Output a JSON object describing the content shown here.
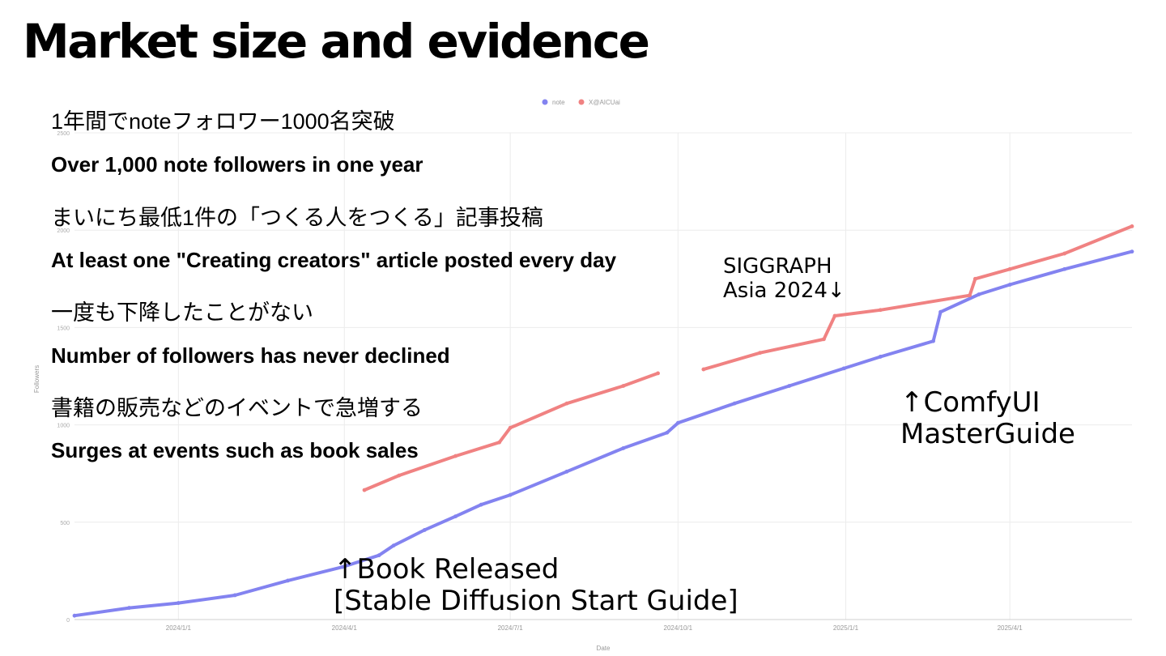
{
  "slide": {
    "title": "Market size and evidence",
    "bullets": [
      "1年間でnoteフォロワー1000名突破",
      "Over 1,000 note followers in one year",
      "まいにち最低1件の「つくる人をつくる」記事投稿",
      "At least one \"Creating creators\" article posted every day",
      "一度も下降したことがない",
      "Number of followers has never declined",
      "書籍の販売などのイベントで急増する",
      "Surges at events such as book sales"
    ],
    "annotations": {
      "siggraph_line1": "SIGGRAPH",
      "siggraph_line2": "Asia 2024↓",
      "comfy_line1": "↑ComfyUI",
      "comfy_line2": "MasterGuide",
      "book_line1": "↑Book Released",
      "book_line2": "[Stable Diffusion Start Guide]"
    }
  },
  "chart_data": {
    "type": "line",
    "xlabel": "Date",
    "ylabel": "Followers",
    "x_ticks": [
      "2024/1/1",
      "2024/4/1",
      "2024/7/1",
      "2024/10/1",
      "2025/1/1",
      "2025/4/1"
    ],
    "y_ticks": [
      0,
      500,
      1000,
      1500,
      2000,
      2500
    ],
    "ylim": [
      0,
      2500
    ],
    "xlim": [
      "2023-11-05",
      "2025-06-07"
    ],
    "grid": true,
    "legend_position": "top",
    "series": [
      {
        "name": "note",
        "color": "#8383f0",
        "points": [
          [
            "2023-11-05",
            20
          ],
          [
            "2023-12-05",
            60
          ],
          [
            "2024-01-01",
            85
          ],
          [
            "2024-02-01",
            125
          ],
          [
            "2024-03-01",
            200
          ],
          [
            "2024-03-31",
            270
          ],
          [
            "2024-04-20",
            330
          ],
          [
            "2024-04-28",
            380
          ],
          [
            "2024-05-15",
            460
          ],
          [
            "2024-06-01",
            530
          ],
          [
            "2024-06-15",
            590
          ],
          [
            "2024-07-01",
            640
          ],
          [
            "2024-08-01",
            760
          ],
          [
            "2024-09-01",
            880
          ],
          [
            "2024-09-25",
            960
          ],
          [
            "2024-10-01",
            1010
          ],
          [
            "2024-11-01",
            1110
          ],
          [
            "2024-12-01",
            1200
          ],
          [
            "2024-12-31",
            1290
          ],
          [
            "2025-01-20",
            1350
          ],
          [
            "2025-02-18",
            1430
          ],
          [
            "2025-02-22",
            1580
          ],
          [
            "2025-03-15",
            1670
          ],
          [
            "2025-04-01",
            1720
          ],
          [
            "2025-05-01",
            1800
          ],
          [
            "2025-06-07",
            1890
          ]
        ]
      },
      {
        "name": "X@AICUai",
        "color": "#f08282",
        "points": [
          [
            "2024-04-12",
            665
          ],
          [
            "2024-05-01",
            740
          ],
          [
            "2024-06-01",
            840
          ],
          [
            "2024-06-25",
            910
          ],
          [
            "2024-07-01",
            985
          ],
          [
            "2024-08-01",
            1110
          ],
          [
            "2024-09-01",
            1200
          ],
          [
            "2024-09-20",
            1265
          ],
          null,
          [
            "2024-10-15",
            1285
          ],
          [
            "2024-11-15",
            1370
          ],
          [
            "2024-12-20",
            1440
          ],
          [
            "2024-12-26",
            1560
          ],
          [
            "2025-01-20",
            1590
          ],
          [
            "2025-03-10",
            1665
          ],
          [
            "2025-03-13",
            1750
          ],
          [
            "2025-04-01",
            1800
          ],
          [
            "2025-05-01",
            1880
          ],
          [
            "2025-06-07",
            2020
          ]
        ]
      }
    ]
  }
}
